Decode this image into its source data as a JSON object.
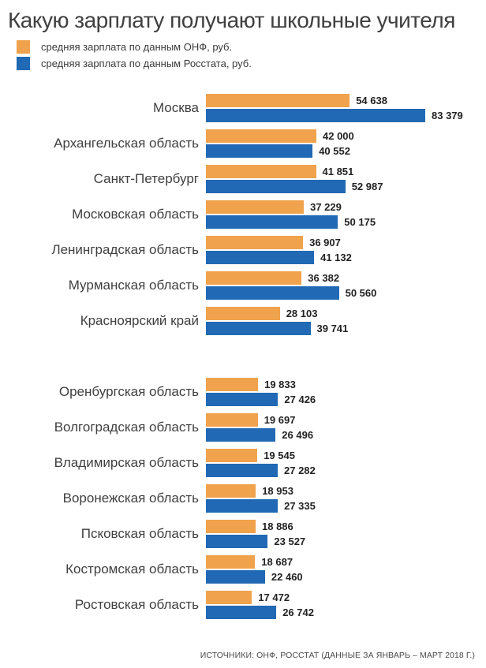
{
  "source_note": "ИСТОЧНИКИ: ОНФ, РОССТАТ (ДАННЫЕ ЗА ЯНВАРЬ – МАРТ 2018 Г.)",
  "chart_data": {
    "type": "bar",
    "orientation": "horizontal",
    "title": "Какую зарплату получают школьные учителя",
    "xlim": [
      0,
      83379
    ],
    "grid": false,
    "axes_hidden": true,
    "value_labels_position": "outside-end",
    "legend_position": "top-left",
    "group_break_after_category": "Красноярский край",
    "categories": [
      "Москва",
      "Архангельская область",
      "Санкт-Петербург",
      "Московская область",
      "Ленинградская область",
      "Мурманская область",
      "Красноярский край",
      "Оренбургская область",
      "Волгоградская область",
      "Владимирская область",
      "Воронежская область",
      "Псковская область",
      "Костромская область",
      "Ростовская область"
    ],
    "series": [
      {
        "key": "onf",
        "name": "средняя зарплата по данным ОНФ, руб.",
        "color": "#F0A24D",
        "values": [
          54638,
          42000,
          41851,
          37229,
          36907,
          36382,
          28103,
          19833,
          19697,
          19545,
          18953,
          18886,
          18687,
          17472
        ],
        "labels": [
          "54 638",
          "42 000",
          "41 851",
          "37 229",
          "36 907",
          "36 382",
          "28 103",
          "19 833",
          "19 697",
          "19 545",
          "18 953",
          "18 886",
          "18 687",
          "17 472"
        ]
      },
      {
        "key": "rosstat",
        "name": "средняя зарплата по данным Росстата, руб.",
        "color": "#2169B4",
        "values": [
          83379,
          40552,
          52987,
          50175,
          41132,
          50560,
          39741,
          27426,
          26496,
          27282,
          27335,
          23527,
          22460,
          26742
        ],
        "labels": [
          "83 379",
          "40 552",
          "52 987",
          "50 175",
          "41 132",
          "50 560",
          "39 741",
          "27 426",
          "26 496",
          "27 282",
          "27 335",
          "23 527",
          "22 460",
          "26 742"
        ]
      }
    ]
  }
}
